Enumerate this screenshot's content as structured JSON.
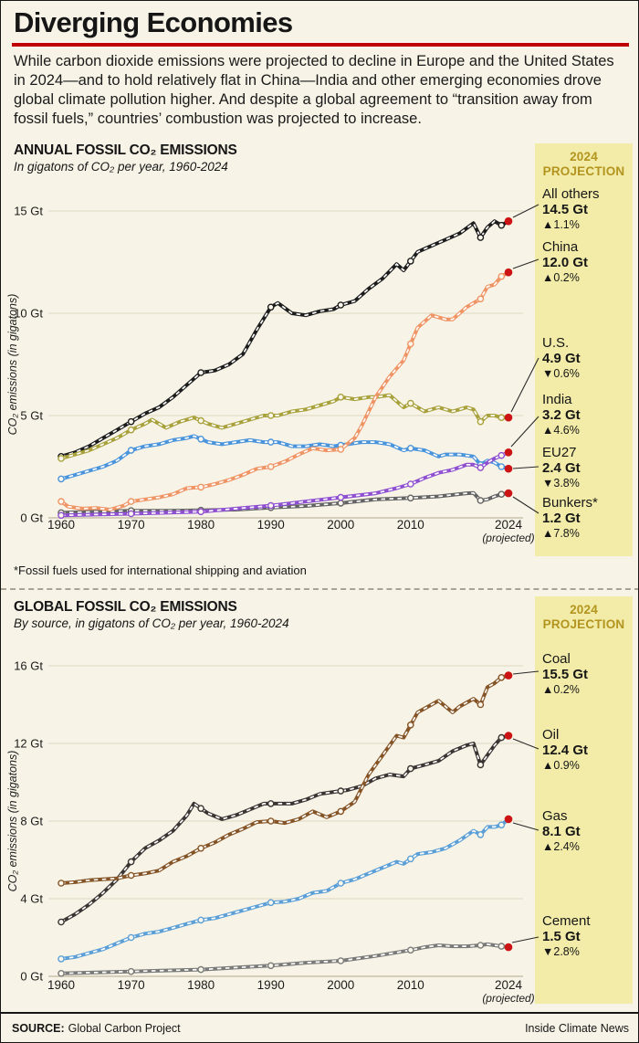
{
  "header": {
    "title": "Diverging Economies",
    "intro": "While carbon dioxide emissions were projected to decline in Europe and the United States in 2024—and to hold relatively flat in China—India and other emerging economies drove global climate pollution higher. And despite a global agreement to “transition away from fossil fuels,” countries’ combustion was projected to increase."
  },
  "projection_header": "2024 PROJECTION",
  "footnote": "*Fossil fuels used for international shipping and aviation",
  "footer": {
    "source_label": "SOURCE:",
    "source_name": "Global Carbon Project",
    "credit": "Inside Climate News"
  },
  "colors": {
    "background": "#f7f3e6",
    "accent_red": "#c00000",
    "dot_red": "#cc1414",
    "panel_yellow": "#f2eca8",
    "projection_text": "#b3941e",
    "gridline": "#ded8c0",
    "gridline_zero": "#b0a98f"
  },
  "chart_data": [
    {
      "type": "line",
      "title": "ANNUAL FOSSIL CO₂ EMISSIONS",
      "subtitle": "In gigatons of CO₂ per year, 1960-2024",
      "ylabel": "CO₂ emissions (in gigatons)",
      "xlim": [
        1960,
        2024
      ],
      "ylim": [
        0,
        15
      ],
      "yticks": [
        0,
        5,
        10,
        15
      ],
      "ytick_labels": [
        "0 Gt",
        "5 Gt",
        "10 Gt",
        "15 Gt"
      ],
      "xticks": [
        1960,
        1970,
        1980,
        1990,
        2000,
        2010,
        2024
      ],
      "xtick_note": "(projected)",
      "legend_position": "right",
      "grid": true,
      "series": [
        {
          "name": "All others",
          "color": "#1c1c1c",
          "value_2024": "14.5 Gt",
          "change_2024": "▲1.1%",
          "x": [
            1960,
            1962,
            1964,
            1966,
            1968,
            1970,
            1972,
            1974,
            1976,
            1978,
            1980,
            1982,
            1984,
            1986,
            1988,
            1990,
            1991,
            1993,
            1995,
            1997,
            1999,
            2000,
            2002,
            2004,
            2006,
            2008,
            2009,
            2011,
            2013,
            2015,
            2017,
            2019,
            2020,
            2021,
            2022,
            2023,
            2024
          ],
          "y": [
            3.0,
            3.2,
            3.5,
            3.9,
            4.3,
            4.7,
            5.1,
            5.4,
            5.9,
            6.5,
            7.1,
            7.2,
            7.5,
            8.0,
            9.2,
            10.3,
            10.5,
            10.0,
            9.9,
            10.1,
            10.2,
            10.4,
            10.6,
            11.2,
            11.7,
            12.4,
            12.1,
            13.0,
            13.3,
            13.6,
            13.9,
            14.4,
            13.7,
            14.2,
            14.5,
            14.3,
            14.5
          ]
        },
        {
          "name": "China",
          "color": "#ef9465",
          "value_2024": "12.0 Gt",
          "change_2024": "▲0.2%",
          "x": [
            1960,
            1961,
            1963,
            1965,
            1967,
            1969,
            1970,
            1972,
            1974,
            1976,
            1978,
            1980,
            1982,
            1984,
            1986,
            1988,
            1990,
            1992,
            1994,
            1996,
            1998,
            2000,
            2002,
            2003,
            2005,
            2007,
            2009,
            2011,
            2013,
            2015,
            2016,
            2018,
            2020,
            2021,
            2022,
            2023,
            2024
          ],
          "y": [
            0.8,
            0.55,
            0.45,
            0.48,
            0.4,
            0.6,
            0.8,
            0.9,
            1.0,
            1.15,
            1.45,
            1.5,
            1.65,
            1.85,
            2.1,
            2.4,
            2.5,
            2.75,
            3.1,
            3.4,
            3.3,
            3.35,
            3.9,
            4.5,
            5.9,
            6.9,
            7.7,
            9.3,
            9.9,
            9.7,
            9.7,
            10.3,
            10.7,
            11.3,
            11.4,
            11.8,
            12.0
          ]
        },
        {
          "name": "U.S.",
          "color": "#a8a13c",
          "value_2024": "4.9 Gt",
          "change_2024": "▼0.6%",
          "x": [
            1960,
            1962,
            1964,
            1966,
            1968,
            1970,
            1972,
            1973,
            1975,
            1977,
            1979,
            1981,
            1983,
            1985,
            1987,
            1989,
            1991,
            1993,
            1995,
            1997,
            1999,
            2000,
            2002,
            2004,
            2005,
            2007,
            2009,
            2010,
            2012,
            2014,
            2016,
            2018,
            2019,
            2020,
            2021,
            2022,
            2023,
            2024
          ],
          "y": [
            2.9,
            3.1,
            3.3,
            3.6,
            3.9,
            4.3,
            4.6,
            4.8,
            4.4,
            4.7,
            4.9,
            4.6,
            4.4,
            4.6,
            4.8,
            5.0,
            5.0,
            5.2,
            5.3,
            5.5,
            5.7,
            5.9,
            5.8,
            5.9,
            5.9,
            6.0,
            5.4,
            5.6,
            5.2,
            5.4,
            5.2,
            5.4,
            5.3,
            4.7,
            5.0,
            5.0,
            4.9,
            4.9
          ]
        },
        {
          "name": "India",
          "color": "#8f4fd1",
          "value_2024": "3.2 Gt",
          "change_2024": "▲4.6%",
          "x": [
            1960,
            1965,
            1970,
            1975,
            1980,
            1985,
            1990,
            1995,
            2000,
            2005,
            2008,
            2010,
            2012,
            2014,
            2016,
            2018,
            2019,
            2020,
            2021,
            2022,
            2023,
            2024
          ],
          "y": [
            0.12,
            0.16,
            0.2,
            0.25,
            0.3,
            0.45,
            0.6,
            0.8,
            1.0,
            1.2,
            1.45,
            1.65,
            1.95,
            2.2,
            2.35,
            2.6,
            2.6,
            2.45,
            2.7,
            2.9,
            3.05,
            3.2
          ]
        },
        {
          "name": "EU27",
          "color": "#4a94dc",
          "value_2024": "2.4 Gt",
          "change_2024": "▼3.8%",
          "x": [
            1960,
            1962,
            1964,
            1966,
            1968,
            1970,
            1972,
            1974,
            1976,
            1978,
            1979,
            1981,
            1983,
            1985,
            1987,
            1989,
            1991,
            1993,
            1995,
            1997,
            1999,
            2001,
            2003,
            2005,
            2007,
            2009,
            2010,
            2012,
            2014,
            2015,
            2017,
            2019,
            2020,
            2021,
            2022,
            2023,
            2024
          ],
          "y": [
            1.9,
            2.1,
            2.3,
            2.5,
            2.8,
            3.3,
            3.5,
            3.6,
            3.8,
            3.9,
            4.0,
            3.7,
            3.6,
            3.7,
            3.8,
            3.7,
            3.7,
            3.5,
            3.5,
            3.6,
            3.5,
            3.6,
            3.7,
            3.7,
            3.6,
            3.3,
            3.4,
            3.3,
            3.0,
            3.1,
            3.1,
            3.0,
            2.6,
            2.8,
            2.7,
            2.5,
            2.4
          ]
        },
        {
          "name": "Bunkers*",
          "color": "#636363",
          "value_2024": "1.2 Gt",
          "change_2024": "▲7.8%",
          "x": [
            1960,
            1965,
            1970,
            1975,
            1980,
            1985,
            1990,
            1995,
            2000,
            2005,
            2010,
            2014,
            2018,
            2019,
            2020,
            2021,
            2022,
            2023,
            2024
          ],
          "y": [
            0.25,
            0.3,
            0.35,
            0.35,
            0.37,
            0.4,
            0.5,
            0.58,
            0.72,
            0.9,
            0.97,
            1.05,
            1.2,
            1.22,
            0.85,
            0.9,
            1.05,
            1.15,
            1.2
          ]
        }
      ]
    },
    {
      "type": "line",
      "title": "GLOBAL FOSSIL CO₂ EMISSIONS",
      "subtitle": "By source, in gigatons of CO₂ per year, 1960-2024",
      "ylabel": "CO₂ emissions (in gigatons)",
      "xlim": [
        1960,
        2024
      ],
      "ylim": [
        0,
        16
      ],
      "yticks": [
        0,
        4,
        8,
        12,
        16
      ],
      "ytick_labels": [
        "0 Gt",
        "4 Gt",
        "8 Gt",
        "12 Gt",
        "16 Gt"
      ],
      "xticks": [
        1960,
        1970,
        1980,
        1990,
        2000,
        2010,
        2024
      ],
      "xtick_note": "(projected)",
      "legend_position": "right",
      "grid": true,
      "series": [
        {
          "name": "Coal",
          "color": "#855426",
          "value_2024": "15.5 Gt",
          "change_2024": "▲0.2%",
          "x": [
            1960,
            1962,
            1964,
            1966,
            1968,
            1970,
            1972,
            1974,
            1976,
            1978,
            1980,
            1982,
            1984,
            1986,
            1988,
            1990,
            1992,
            1994,
            1996,
            1998,
            2000,
            2002,
            2004,
            2006,
            2008,
            2009,
            2011,
            2013,
            2014,
            2016,
            2017,
            2019,
            2020,
            2021,
            2022,
            2023,
            2024
          ],
          "y": [
            4.8,
            4.85,
            4.95,
            5.0,
            5.05,
            5.2,
            5.3,
            5.45,
            5.9,
            6.2,
            6.6,
            6.9,
            7.3,
            7.6,
            7.95,
            8.0,
            7.9,
            8.1,
            8.5,
            8.2,
            8.5,
            9.0,
            10.4,
            11.4,
            12.4,
            12.3,
            13.6,
            14.0,
            14.2,
            13.6,
            13.9,
            14.3,
            14.0,
            14.9,
            15.1,
            15.4,
            15.5
          ]
        },
        {
          "name": "Oil",
          "color": "#3a3432",
          "value_2024": "12.4 Gt",
          "change_2024": "▲0.9%",
          "x": [
            1960,
            1962,
            1964,
            1966,
            1968,
            1970,
            1972,
            1974,
            1976,
            1978,
            1979,
            1981,
            1983,
            1985,
            1987,
            1989,
            1991,
            1993,
            1995,
            1997,
            1999,
            2001,
            2003,
            2005,
            2007,
            2009,
            2010,
            2012,
            2014,
            2016,
            2018,
            2019,
            2020,
            2021,
            2022,
            2023,
            2024
          ],
          "y": [
            2.8,
            3.2,
            3.7,
            4.3,
            5.0,
            5.9,
            6.6,
            7.0,
            7.5,
            8.3,
            8.9,
            8.4,
            8.1,
            8.3,
            8.6,
            8.9,
            8.9,
            8.9,
            9.1,
            9.4,
            9.5,
            9.6,
            9.8,
            10.2,
            10.4,
            10.3,
            10.7,
            10.9,
            11.1,
            11.6,
            11.9,
            12.0,
            10.9,
            11.4,
            11.9,
            12.3,
            12.4
          ]
        },
        {
          "name": "Gas",
          "color": "#5b9fd6",
          "value_2024": "8.1 Gt",
          "change_2024": "▲2.4%",
          "x": [
            1960,
            1962,
            1964,
            1966,
            1968,
            1970,
            1972,
            1974,
            1976,
            1978,
            1980,
            1982,
            1984,
            1986,
            1988,
            1990,
            1992,
            1994,
            1996,
            1998,
            2000,
            2002,
            2004,
            2006,
            2008,
            2009,
            2011,
            2013,
            2015,
            2017,
            2019,
            2020,
            2021,
            2022,
            2023,
            2024
          ],
          "y": [
            0.9,
            1.0,
            1.2,
            1.4,
            1.7,
            2.0,
            2.2,
            2.3,
            2.5,
            2.7,
            2.9,
            3.0,
            3.2,
            3.4,
            3.6,
            3.8,
            3.85,
            4.0,
            4.3,
            4.4,
            4.8,
            5.0,
            5.3,
            5.6,
            5.9,
            5.8,
            6.3,
            6.4,
            6.6,
            7.0,
            7.5,
            7.3,
            7.7,
            7.7,
            7.8,
            8.1
          ]
        },
        {
          "name": "Cement",
          "color": "#7a7a78",
          "value_2024": "1.5 Gt",
          "change_2024": "▼2.8%",
          "x": [
            1960,
            1965,
            1970,
            1975,
            1980,
            1985,
            1990,
            1995,
            2000,
            2005,
            2010,
            2012,
            2014,
            2016,
            2018,
            2020,
            2021,
            2022,
            2023,
            2024
          ],
          "y": [
            0.15,
            0.2,
            0.25,
            0.3,
            0.35,
            0.45,
            0.55,
            0.7,
            0.8,
            1.05,
            1.35,
            1.5,
            1.6,
            1.55,
            1.55,
            1.6,
            1.65,
            1.6,
            1.55,
            1.5
          ]
        }
      ]
    }
  ]
}
